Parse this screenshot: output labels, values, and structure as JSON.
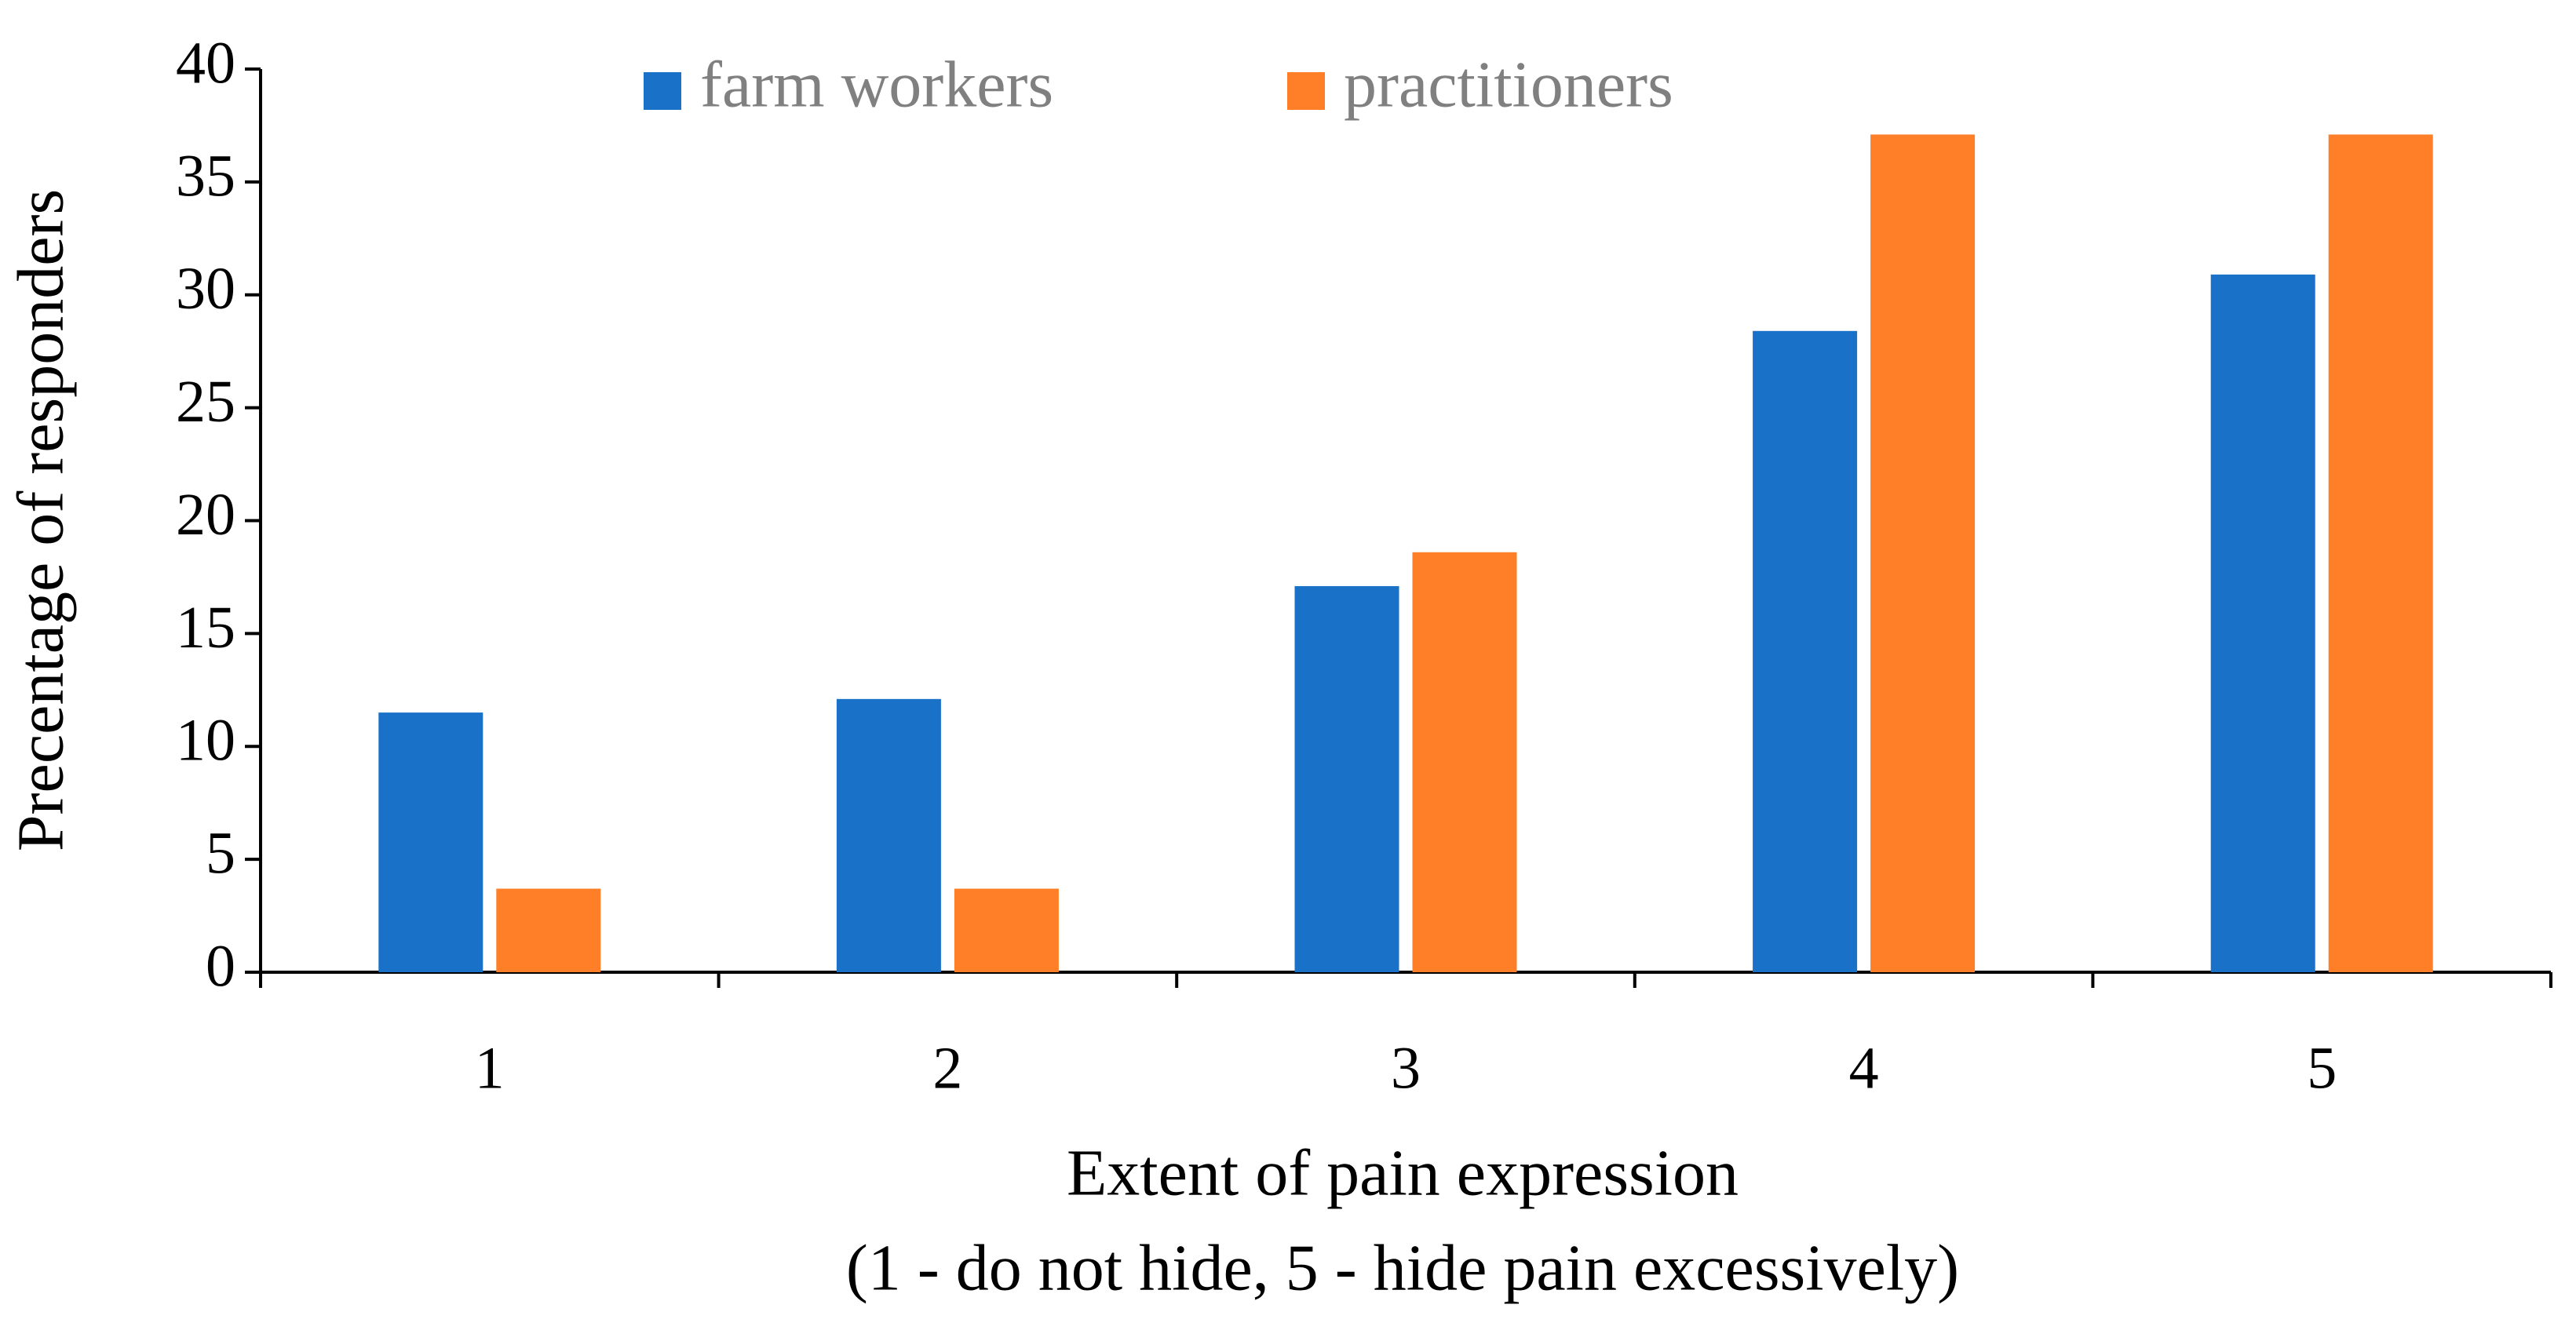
{
  "chart_data": {
    "type": "bar",
    "categories": [
      "1",
      "2",
      "3",
      "4",
      "5"
    ],
    "series": [
      {
        "name": "farm workers",
        "color": "#1971c8",
        "values": [
          11.5,
          12.1,
          17.1,
          28.4,
          30.9
        ]
      },
      {
        "name": "practitioners",
        "color": "#fe7f27",
        "values": [
          3.7,
          3.7,
          18.6,
          37.1,
          37.1
        ]
      }
    ],
    "ylim": [
      0,
      40
    ],
    "yticks": [
      0,
      5,
      10,
      15,
      20,
      25,
      30,
      35,
      40
    ],
    "y_label": "Precentage of responders",
    "x_label": [
      "Extent of pain expression",
      "(1 - do not hide, 5 - hide pain excessively)"
    ],
    "legend": "top",
    "grid": false
  }
}
